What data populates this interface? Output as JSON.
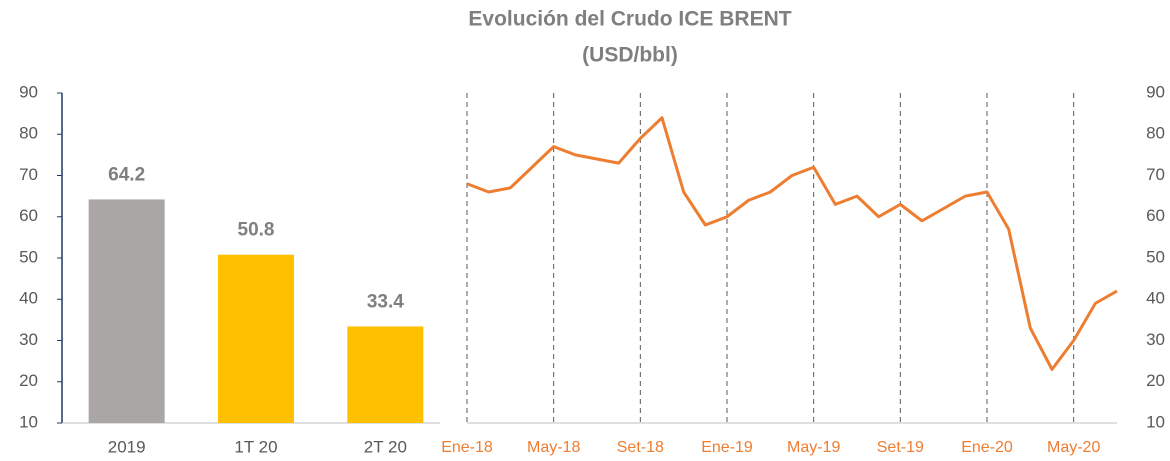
{
  "title": "Evolución del Crudo ICE BRENT",
  "subtitle": "(USD/bbl)",
  "chart_data": [
    {
      "type": "bar",
      "categories": [
        "2019",
        "1T 20",
        "2T 20"
      ],
      "values": [
        64.2,
        50.8,
        33.4
      ],
      "colors": [
        "#aaa6a6",
        "#ffc000",
        "#ffc000"
      ],
      "ylim": [
        10,
        90
      ],
      "yticks": [
        10,
        20,
        30,
        40,
        50,
        60,
        70,
        80,
        90
      ]
    },
    {
      "type": "line",
      "x": [
        "2018-01",
        "2018-02",
        "2018-03",
        "2018-04",
        "2018-05",
        "2018-06",
        "2018-07",
        "2018-08",
        "2018-09",
        "2018-10",
        "2018-11",
        "2018-12",
        "2019-01",
        "2019-02",
        "2019-03",
        "2019-04",
        "2019-05",
        "2019-06",
        "2019-07",
        "2019-08",
        "2019-09",
        "2019-10",
        "2019-11",
        "2019-12",
        "2020-01",
        "2020-02",
        "2020-03",
        "2020-04",
        "2020-05",
        "2020-06",
        "2020-07"
      ],
      "series": [
        {
          "name": "ICE BRENT",
          "color": "#ed7d31",
          "values": [
            68,
            66,
            67,
            72,
            77,
            75,
            74,
            73,
            79,
            84,
            66,
            58,
            60,
            64,
            66,
            70,
            72,
            63,
            65,
            60,
            63,
            59,
            62,
            65,
            66,
            57,
            33,
            23,
            30,
            39,
            42
          ]
        }
      ],
      "xticks": [
        {
          "value": "2018-01",
          "label": "Ene-18"
        },
        {
          "value": "2018-05",
          "label": "May-18"
        },
        {
          "value": "2018-09",
          "label": "Set-18"
        },
        {
          "value": "2019-01",
          "label": "Ene-19"
        },
        {
          "value": "2019-05",
          "label": "May-19"
        },
        {
          "value": "2019-09",
          "label": "Set-19"
        },
        {
          "value": "2020-01",
          "label": "Ene-20"
        },
        {
          "value": "2020-05",
          "label": "May-20"
        }
      ],
      "ylim": [
        10,
        90
      ],
      "yticks": [
        10,
        20,
        30,
        40,
        50,
        60,
        70,
        80,
        90
      ],
      "grid": true
    }
  ]
}
